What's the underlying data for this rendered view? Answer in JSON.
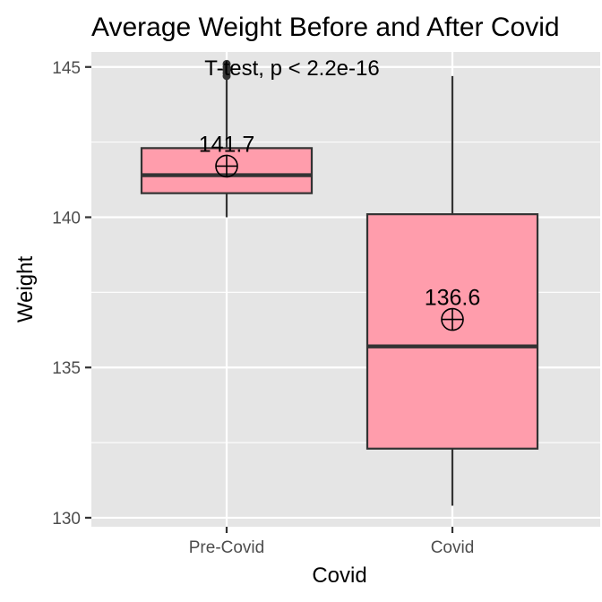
{
  "chart_data": {
    "type": "boxplot",
    "title": "Average Weight Before and After Covid",
    "xlabel": "Covid",
    "ylabel": "Weight",
    "categories": [
      "Pre-Covid",
      "Covid"
    ],
    "ylim": [
      129.7,
      145.5
    ],
    "y_ticks": [
      130,
      135,
      140,
      145
    ],
    "y_tick_labels": [
      "130",
      "135",
      "140",
      "145"
    ],
    "boxes": [
      {
        "category": "Pre-Covid",
        "whisker_low": 140.0,
        "q1": 140.8,
        "median": 141.4,
        "q3": 142.3,
        "whisker_high": 144.6,
        "outliers": [
          144.7,
          144.8,
          144.9,
          145.0,
          145.1
        ],
        "mean": 141.7,
        "mean_label": "141.7"
      },
      {
        "category": "Covid",
        "whisker_low": 130.4,
        "q1": 132.3,
        "median": 135.7,
        "q3": 140.1,
        "whisker_high": 144.7,
        "outliers": [],
        "mean": 136.6,
        "mean_label": "136.6"
      }
    ],
    "annotation": "T-test, p < 2.2e-16",
    "box_fill": "#ff9dac",
    "box_stroke": "#333333",
    "panel_background": "#e5e5e5",
    "grid_color": "#ffffff",
    "grid": true,
    "legend": "none"
  }
}
